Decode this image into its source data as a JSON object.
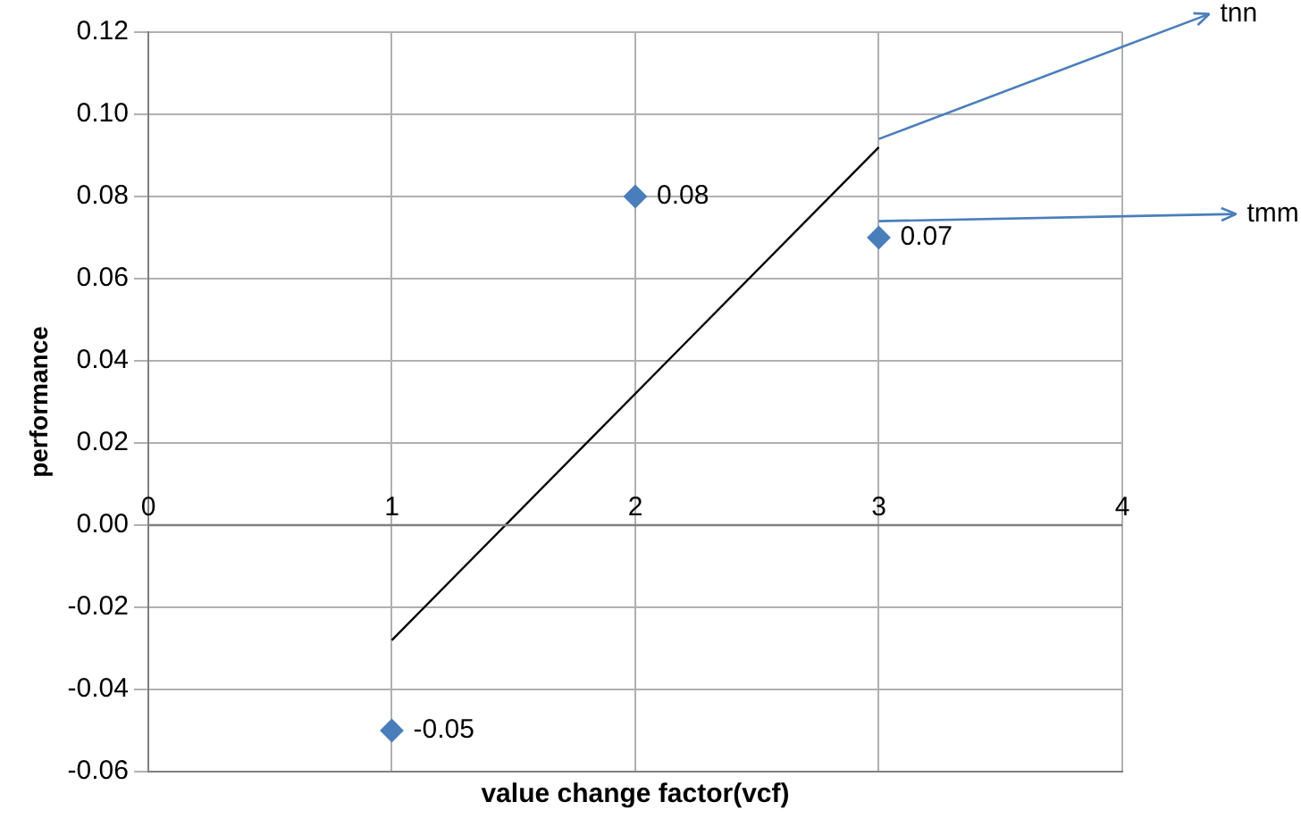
{
  "chart_data": {
    "type": "scatter",
    "xlabel": "value change factor(vcf)",
    "ylabel": "performance",
    "x": [
      1,
      2,
      3
    ],
    "series": [
      {
        "color": "#4a7ebb",
        "marker": "diamond",
        "values": [
          -0.05,
          0.08,
          0.07
        ],
        "value_labels": [
          "-0.05",
          "0.08",
          "0.07"
        ]
      },
      {
        "type": "line",
        "color": "#000000",
        "marker": "none",
        "x": [
          1,
          3
        ],
        "values": [
          -0.028,
          0.092
        ]
      }
    ],
    "xlim": [
      0,
      4
    ],
    "xticks": [
      0,
      1,
      2,
      3,
      4
    ],
    "ylim": [
      -0.06,
      0.12
    ],
    "yticks": [
      {
        "value": -0.06,
        "label": "-0.06"
      },
      {
        "value": -0.04,
        "label": "-0.04"
      },
      {
        "value": -0.02,
        "label": "-0.02"
      },
      {
        "value": 0,
        "label": "0.00"
      },
      {
        "value": 0.02,
        "label": "0.02"
      },
      {
        "value": 0.04,
        "label": "0.04"
      },
      {
        "value": 0.06,
        "label": "0.06"
      },
      {
        "value": 0.08,
        "label": "0.08"
      },
      {
        "value": 0.1,
        "label": "0.10"
      },
      {
        "value": 0.12,
        "label": "0.12"
      }
    ],
    "grid": true,
    "annotations": [
      {
        "text": "tnn",
        "x": 3,
        "y": 0.094
      },
      {
        "text": "tmm",
        "x": 3,
        "y": 0.074
      }
    ]
  }
}
